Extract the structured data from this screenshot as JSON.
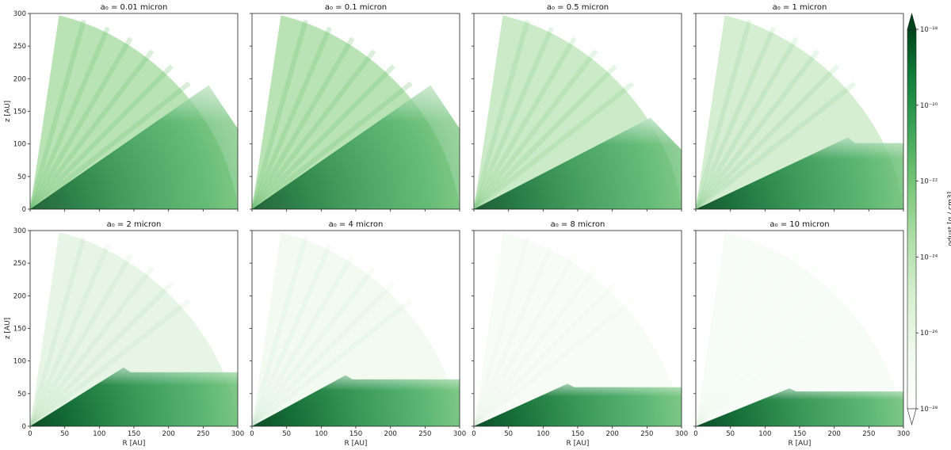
{
  "chart_data": {
    "type": "heatmap",
    "layout": "2x4 grid of panels sharing axes",
    "colormap": "Greens",
    "colorbar": {
      "label": "ρdust [g / cm3]",
      "scale": "log",
      "range": [
        1e-28,
        1e-18
      ],
      "ticks": [
        "10⁻²⁸",
        "10⁻²⁶",
        "10⁻²⁴",
        "10⁻²²",
        "10⁻²⁰",
        "10⁻¹⁸"
      ],
      "extend": "both"
    },
    "xlabel": "R [AU]",
    "ylabel": "z [AU]",
    "xlim": [
      0,
      300
    ],
    "ylim": [
      0,
      300
    ],
    "xticks": [
      0,
      50,
      100,
      150,
      200,
      250,
      300
    ],
    "yticks": [
      0,
      50,
      100,
      150,
      200,
      250,
      300
    ],
    "panels": [
      {
        "title": "a₀ = 0.01 micron",
        "grain_size_micron": 0.01,
        "disk_top_z_AU": 190,
        "disk_peak_R_AU": 258,
        "envelope_opacity": 0.75,
        "disk_strength": 0.8
      },
      {
        "title": "a₀ = 0.1 micron",
        "grain_size_micron": 0.1,
        "disk_top_z_AU": 190,
        "disk_peak_R_AU": 258,
        "envelope_opacity": 0.75,
        "disk_strength": 0.8
      },
      {
        "title": "a₀ = 0.5 micron",
        "grain_size_micron": 0.5,
        "disk_top_z_AU": 140,
        "disk_peak_R_AU": 255,
        "envelope_opacity": 0.55,
        "disk_strength": 0.85
      },
      {
        "title": "a₀ = 1 micron",
        "grain_size_micron": 1,
        "disk_top_z_AU": 110,
        "disk_peak_R_AU": 220,
        "envelope_opacity": 0.45,
        "disk_strength": 0.9
      },
      {
        "title": "a₀ = 2 micron",
        "grain_size_micron": 2,
        "disk_top_z_AU": 90,
        "disk_peak_R_AU": 135,
        "envelope_opacity": 0.25,
        "disk_strength": 0.95
      },
      {
        "title": "a₀ = 4 micron",
        "grain_size_micron": 4,
        "disk_top_z_AU": 78,
        "disk_peak_R_AU": 135,
        "envelope_opacity": 0.14,
        "disk_strength": 0.95
      },
      {
        "title": "a₀ = 8 micron",
        "grain_size_micron": 8,
        "disk_top_z_AU": 65,
        "disk_peak_R_AU": 135,
        "envelope_opacity": 0.08,
        "disk_strength": 0.95
      },
      {
        "title": "a₀ = 10 micron",
        "grain_size_micron": 10,
        "disk_top_z_AU": 58,
        "disk_peak_R_AU": 135,
        "envelope_opacity": 0.07,
        "disk_strength": 0.95
      }
    ]
  }
}
